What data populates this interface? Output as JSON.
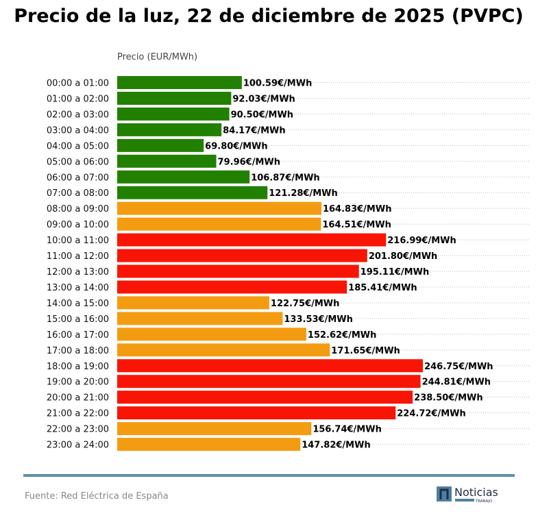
{
  "chart_data": {
    "type": "bar",
    "orientation": "horizontal",
    "title": "Precio de la luz, 22 de diciembre de 2025 (PVPC)",
    "xlabel": "Precio (EUR/MWh)",
    "ylabel": "",
    "xlim": [
      0,
      333
    ],
    "grid": "horizontal dotted",
    "value_suffix": "€/MWh",
    "categories": [
      "00:00 a 01:00",
      "01:00 a 02:00",
      "02:00 a 03:00",
      "03:00 a 04:00",
      "04:00 a 05:00",
      "05:00 a 06:00",
      "06:00 a 07:00",
      "07:00 a 08:00",
      "08:00 a 09:00",
      "09:00 a 10:00",
      "10:00 a 11:00",
      "11:00 a 12:00",
      "12:00 a 13:00",
      "13:00 a 14:00",
      "14:00 a 15:00",
      "15:00 a 16:00",
      "16:00 a 17:00",
      "17:00 a 18:00",
      "18:00 a 19:00",
      "19:00 a 20:00",
      "20:00 a 21:00",
      "21:00 a 22:00",
      "22:00 a 23:00",
      "23:00 a 24:00"
    ],
    "values": [
      100.59,
      92.03,
      90.5,
      84.17,
      69.8,
      79.96,
      106.87,
      121.28,
      164.83,
      164.51,
      216.99,
      201.8,
      195.11,
      185.41,
      122.75,
      133.53,
      152.62,
      171.65,
      246.75,
      244.81,
      238.5,
      224.72,
      156.74,
      147.82
    ],
    "levels": [
      "low",
      "low",
      "low",
      "low",
      "low",
      "low",
      "low",
      "low",
      "mid",
      "mid",
      "high",
      "high",
      "high",
      "high",
      "mid",
      "mid",
      "mid",
      "mid",
      "high",
      "high",
      "high",
      "high",
      "mid",
      "mid"
    ],
    "colors": {
      "low": "#228000",
      "mid": "#f39c12",
      "high": "#f91505"
    }
  },
  "footer": {
    "source": "Fuente: Red Eléctrica de España",
    "logo_text": "Noticias",
    "logo_subtext": "TRABAJO",
    "rule_color": "#5b91a9"
  }
}
